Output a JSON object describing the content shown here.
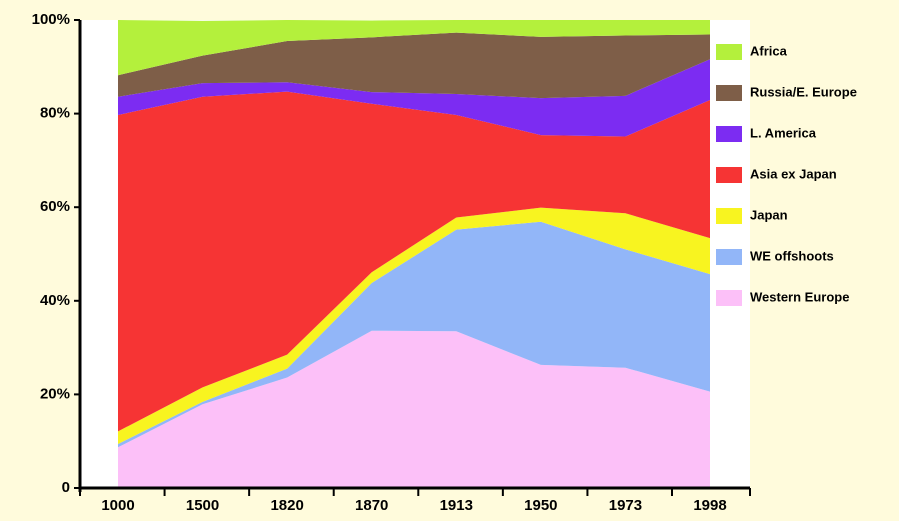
{
  "chart_data": {
    "type": "stacked_area",
    "categories": [
      "1000",
      "1500",
      "1820",
      "1870",
      "1913",
      "1950",
      "1973",
      "1998"
    ],
    "series": [
      {
        "name": "Western Europe",
        "color": "#fcc0f8",
        "values": [
          8.7,
          17.9,
          23.6,
          33.6,
          33.5,
          26.3,
          25.7,
          20.6
        ]
      },
      {
        "name": "WE offshoots",
        "color": "#92b6f8",
        "values": [
          0.7,
          0.5,
          1.9,
          10.2,
          21.7,
          30.6,
          25.3,
          25.1
        ]
      },
      {
        "name": "Japan",
        "color": "#f8f420",
        "values": [
          2.7,
          3.1,
          3.0,
          2.3,
          2.6,
          3.0,
          7.7,
          7.7
        ]
      },
      {
        "name": "Asia ex Japan",
        "color": "#f63434",
        "values": [
          67.6,
          62.1,
          56.2,
          36.0,
          21.9,
          15.5,
          16.4,
          29.5
        ]
      },
      {
        "name": "L. America",
        "color": "#7c2cf2",
        "values": [
          3.9,
          2.9,
          2.0,
          2.5,
          4.5,
          7.9,
          8.7,
          8.7
        ]
      },
      {
        "name": "Russia/E. Europe",
        "color": "#7e5e48",
        "values": [
          4.6,
          5.9,
          8.8,
          11.7,
          13.1,
          13.1,
          12.9,
          5.3
        ]
      },
      {
        "name": "Africa",
        "color": "#b4f03c",
        "values": [
          11.8,
          7.4,
          4.5,
          3.6,
          2.7,
          3.6,
          3.3,
          3.1
        ]
      }
    ],
    "ylim": [
      0,
      100
    ],
    "yticks": [
      {
        "value": 0,
        "label": "0"
      },
      {
        "value": 20,
        "label": "20%"
      },
      {
        "value": 40,
        "label": "40%"
      },
      {
        "value": 60,
        "label": "60%"
      },
      {
        "value": 80,
        "label": "80%"
      },
      {
        "value": 100,
        "label": "100%"
      }
    ],
    "legend": "right"
  }
}
